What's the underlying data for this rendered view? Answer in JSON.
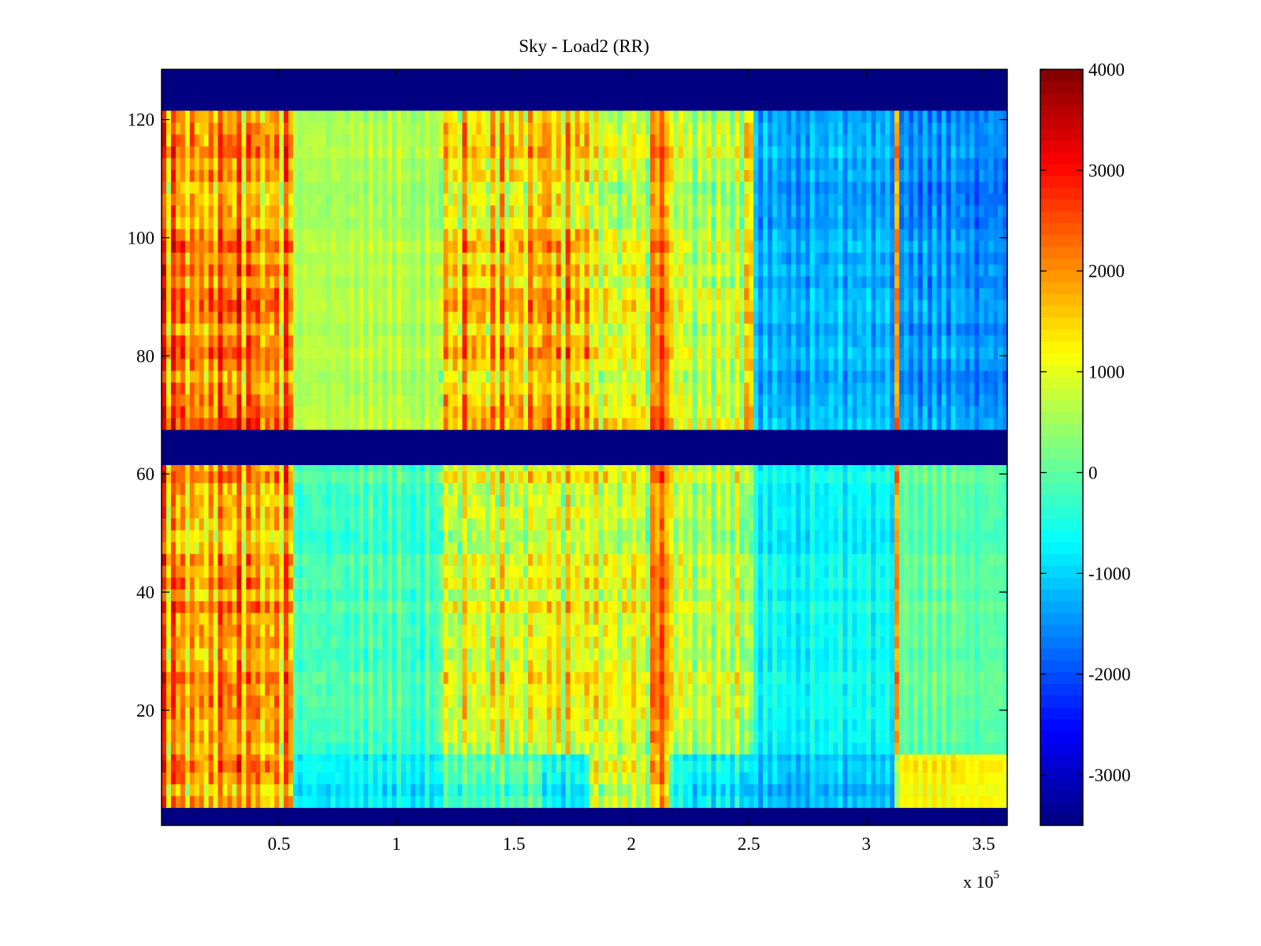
{
  "chart_data": {
    "type": "heatmap",
    "title": "Sky - Load2 (RR)",
    "xlabel": "",
    "ylabel": "",
    "x_multiplier_label": "x 10",
    "x_multiplier_exponent": "5",
    "xlim": [
      0,
      3.6
    ],
    "ylim": [
      0.5,
      128.5
    ],
    "x_ticks": [
      0.5,
      1,
      1.5,
      2,
      2.5,
      3,
      3.5
    ],
    "x_tick_labels": [
      "0.5",
      "1",
      "1.5",
      "2",
      "2.5",
      "3",
      "3.5"
    ],
    "y_ticks": [
      20,
      40,
      60,
      80,
      100,
      120
    ],
    "y_tick_labels": [
      "20",
      "40",
      "60",
      "80",
      "100",
      "120"
    ],
    "colormap": "jet",
    "clim": [
      -3500,
      4000
    ],
    "colorbar_ticks": [
      4000,
      3000,
      2000,
      1000,
      0,
      -1000,
      -2000,
      -3000
    ],
    "colorbar_tick_labels": [
      "4000",
      "3000",
      "2000",
      "1000",
      "0",
      "-1000",
      "-2000",
      "-3000"
    ],
    "blank_value": -3500,
    "blank_rows": [
      [
        1,
        3
      ],
      [
        62,
        67
      ],
      [
        122,
        128
      ]
    ],
    "x_segment_edges": [
      0,
      0.55,
      1.18,
      1.62,
      1.65,
      1.82,
      2.08,
      2.15,
      2.47,
      2.52,
      3.12,
      3.14,
      3.6
    ],
    "row_bands": [
      {
        "rows": [
          68,
          121
        ],
        "mean": [
          2000,
          600,
          1500,
          2500,
          1500,
          1000,
          2000,
          700,
          1500,
          -1300,
          1500,
          -1500
        ],
        "spread": [
          1800,
          500,
          1800,
          1000,
          1800,
          1500,
          1200,
          1200,
          1500,
          700,
          1200,
          700
        ]
      },
      {
        "rows": [
          13,
          61
        ],
        "mean": [
          1800,
          -200,
          900,
          1500,
          1000,
          1000,
          2000,
          700,
          500,
          -700,
          1500,
          0
        ],
        "spread": [
          1800,
          700,
          1500,
          1200,
          1500,
          1500,
          1200,
          1200,
          1500,
          600,
          1200,
          500
        ]
      },
      {
        "rows": [
          4,
          12
        ],
        "mean": [
          1800,
          -800,
          -200,
          -500,
          -800,
          800,
          1500,
          -800,
          -1000,
          -1200,
          0,
          1200
        ],
        "spread": [
          1800,
          700,
          900,
          900,
          900,
          1500,
          1500,
          900,
          900,
          600,
          1200,
          400
        ]
      }
    ]
  }
}
